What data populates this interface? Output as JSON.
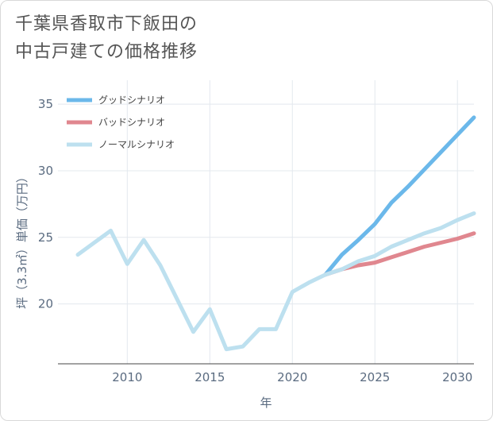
{
  "title_lines": [
    "千葉県香取市下飯田の",
    "中古戸建ての価格推移"
  ],
  "chart_data": {
    "type": "line",
    "title": "千葉県香取市下飯田の中古戸建ての価格推移",
    "xlabel": "年",
    "ylabel": "坪（3.3㎡）単価（万円）",
    "xlim": [
      2005.8,
      2031
    ],
    "ylim": [
      15.5,
      36.8
    ],
    "x_ticks": [
      2010,
      2015,
      2020,
      2025,
      2030
    ],
    "y_ticks": [
      20,
      25,
      30,
      35
    ],
    "x_tick_labels": [
      "2010",
      "2015",
      "2020",
      "2025",
      "2030"
    ],
    "y_tick_labels": [
      "20",
      "25",
      "30",
      "35"
    ],
    "grid": true,
    "legend_position": "top-left",
    "series": [
      {
        "name": "グッドシナリオ",
        "color": "#6bb8ea",
        "x": [
          2022,
          2023,
          2024,
          2025,
          2026,
          2027,
          2028,
          2029,
          2030,
          2031
        ],
        "y": [
          22.2,
          23.7,
          24.8,
          26.0,
          27.6,
          28.8,
          30.1,
          31.4,
          32.7,
          34.0
        ]
      },
      {
        "name": "バッドシナリオ",
        "color": "#e0878f",
        "x": [
          2022,
          2023,
          2024,
          2025,
          2026,
          2027,
          2028,
          2029,
          2030,
          2031
        ],
        "y": [
          22.2,
          22.6,
          22.9,
          23.1,
          23.5,
          23.9,
          24.3,
          24.6,
          24.9,
          25.3
        ]
      },
      {
        "name": "ノーマルシナリオ",
        "color": "#bde0ef",
        "x": [
          2007,
          2008,
          2009,
          2010,
          2011,
          2012,
          2013,
          2014,
          2015,
          2016,
          2017,
          2018,
          2019,
          2020,
          2021,
          2022,
          2023,
          2024,
          2025,
          2026,
          2027,
          2028,
          2029,
          2030,
          2031
        ],
        "y": [
          23.7,
          24.6,
          25.5,
          23.0,
          24.8,
          22.9,
          20.4,
          17.9,
          19.6,
          16.6,
          16.8,
          18.1,
          18.1,
          20.9,
          21.6,
          22.2,
          22.6,
          23.2,
          23.6,
          24.3,
          24.8,
          25.3,
          25.7,
          26.3,
          26.8
        ]
      }
    ]
  }
}
